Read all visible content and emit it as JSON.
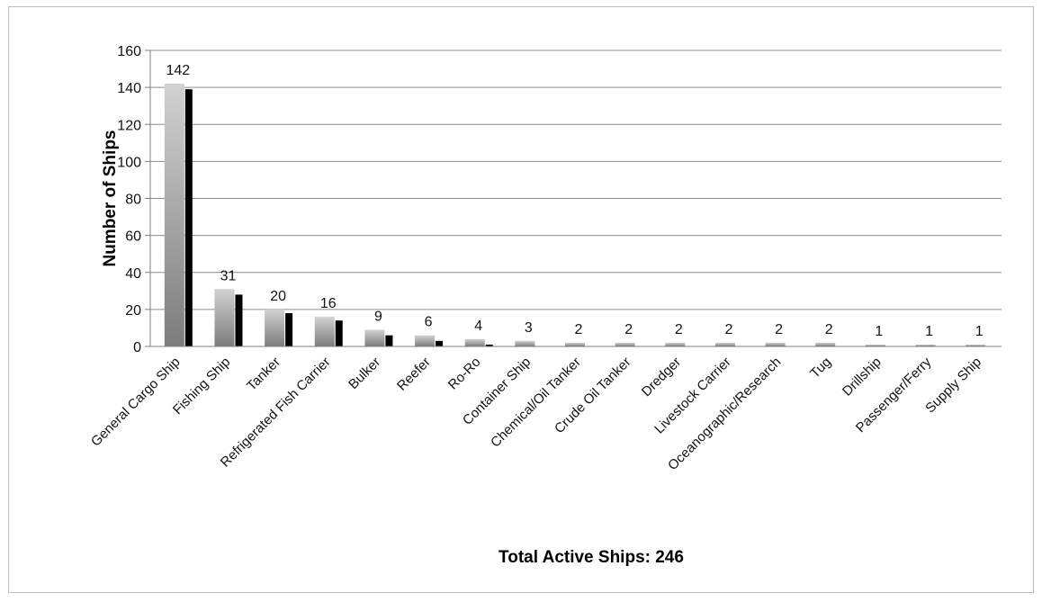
{
  "chart_data": {
    "type": "bar",
    "title": "",
    "xlabel": "Total Active Ships: 246",
    "ylabel": "Number of Ships",
    "ylim": [
      0,
      160
    ],
    "yticks": [
      0,
      20,
      40,
      60,
      80,
      100,
      120,
      140,
      160
    ],
    "grid": true,
    "legend": "none",
    "categories": [
      "General Cargo Ship",
      "Fishing Ship",
      "Tanker",
      "Refrigerated Fish Carrier",
      "Bulker",
      "Reefer",
      "Ro-Ro",
      "Container Ship",
      "Chemical/Oil Tanker",
      "Crude Oil Tanker",
      "Dredger",
      "Livestock Carrier",
      "Oceanographic/Research",
      "Tug",
      "Drillship",
      "Passenger/Ferry",
      "Supply Ship"
    ],
    "series": [
      {
        "values": [
          142,
          31,
          20,
          16,
          9,
          6,
          4,
          3,
          2,
          2,
          2,
          2,
          2,
          2,
          1,
          1,
          1
        ],
        "color": "#a8a8a8"
      },
      {
        "values": [
          139,
          28,
          18,
          14,
          6,
          3,
          1,
          0,
          0,
          0,
          0,
          0,
          0,
          0,
          0,
          0,
          0
        ],
        "color": "#000000"
      }
    ],
    "data_labels": [
      "142",
      "31",
      "20",
      "16",
      "9",
      "6",
      "4",
      "3",
      "2",
      "2",
      "2",
      "2",
      "2",
      "2",
      "1",
      "1",
      "1"
    ]
  }
}
